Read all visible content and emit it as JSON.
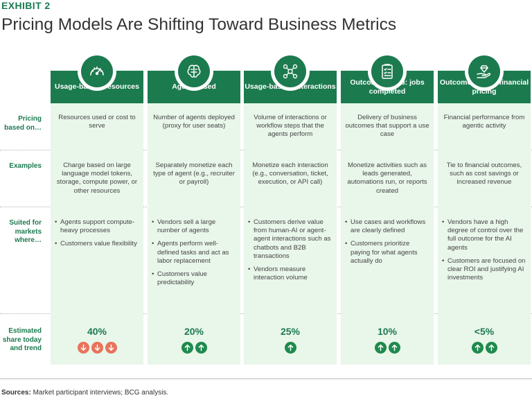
{
  "exhibit_label": "EXHIBIT 2",
  "title": "Pricing Models Are Shifting Toward Business Metrics",
  "row_labels": {
    "pricing": "Pricing based on…",
    "examples": "Examples",
    "suited": "Suited for markets where…",
    "share": "Estimated share today and trend"
  },
  "columns": [
    {
      "header": "Usage-based: resources",
      "icon": "gauge-icon",
      "pricing_basis": "Resources used or cost to serve",
      "examples": "Charge based on large language model tokens, storage, compute power, or other resources",
      "suited": [
        "Agents support compute-heavy processes",
        "Customers value flexibility"
      ],
      "share": "40%",
      "trend": [
        "down",
        "down",
        "down"
      ]
    },
    {
      "header": "Agent-based",
      "icon": "brain-icon",
      "pricing_basis": "Number of agents deployed (proxy for user seats)",
      "examples": "Separately monetize each type of agent (e.g., recruiter or payroll)",
      "suited": [
        "Vendors sell a large number of agents",
        "Agents perform well-defined tasks and act as labor replacement",
        "Customers value predictability"
      ],
      "share": "20%",
      "trend": [
        "up",
        "up"
      ]
    },
    {
      "header": "Usage-based: interactions",
      "icon": "network-icon",
      "pricing_basis": "Volume of interactions or workflow steps that the agents perform",
      "examples": "Monetize each interaction (e.g., conversation, ticket, execution, or API call)",
      "suited": [
        "Customers derive value from human-AI or agent-agent interactions such as chatbots and B2B transactions",
        "Vendors measure interaction volume"
      ],
      "share": "25%",
      "trend": [
        "up"
      ]
    },
    {
      "header": "Outcome-based: jobs completed",
      "icon": "checklist-icon",
      "pricing_basis": "Delivery of business outcomes that support a use case",
      "examples": "Monetize activities such as leads generated, automations run, or reports created",
      "suited": [
        "Use cases and workflows are clearly defined",
        "Customers prioritize paying for what agents actually do"
      ],
      "share": "10%",
      "trend": [
        "up",
        "up"
      ]
    },
    {
      "header": "Outcome-based: financial pricing",
      "icon": "hand-diamond-icon",
      "pricing_basis": "Financial performance from agentic activity",
      "examples": "Tie to financial outcomes, such as cost savings or increased revenue",
      "suited": [
        "Vendors have a high degree of control over the full outcome for the AI agents",
        "Customers are focused on clear ROI and justifying AI investments"
      ],
      "share": "<5%",
      "trend": [
        "up",
        "up"
      ]
    }
  ],
  "sources_label": "Sources:",
  "sources_text": "Market participant interviews; BCG analysis.",
  "colors": {
    "green": "#1c7a4f",
    "light_green": "#e9f6ea",
    "down_arrow": "#e8735b",
    "up_arrow": "#1e8a4d"
  }
}
